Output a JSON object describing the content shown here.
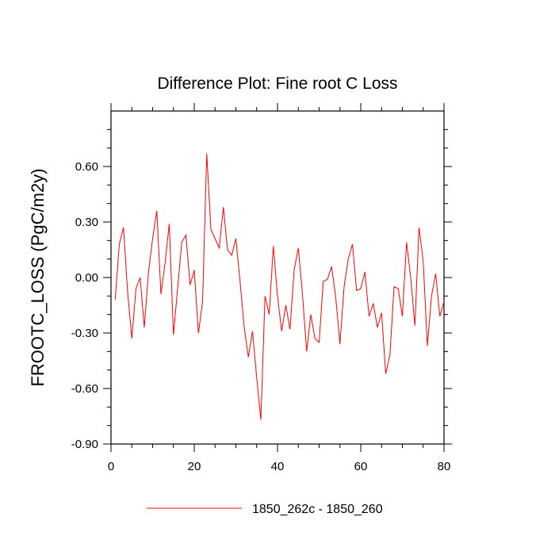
{
  "chart_data": {
    "type": "line",
    "title": "Difference Plot: Fine root C Loss",
    "xlabel": "",
    "ylabel": "FROOTC_LOSS  (PgC/m2y)",
    "xlim": [
      0,
      80
    ],
    "ylim": [
      -0.9,
      0.9
    ],
    "xticks": [
      0,
      20,
      40,
      60,
      80
    ],
    "xtick_labels": [
      "0",
      "20",
      "40",
      "60",
      "80"
    ],
    "yticks": [
      -0.9,
      -0.6,
      -0.3,
      0.0,
      0.3,
      0.6
    ],
    "ytick_labels": [
      "-0.90",
      "-0.60",
      "-0.30",
      "0.00",
      "0.30",
      "0.60"
    ],
    "grid": false,
    "legend_position": "bottom",
    "series": [
      {
        "name": "1850_262c - 1850_260",
        "color": "#ff0000",
        "x": [
          1,
          2,
          3,
          4,
          5,
          6,
          7,
          8,
          9,
          10,
          11,
          12,
          13,
          14,
          15,
          16,
          17,
          18,
          19,
          20,
          21,
          22,
          23,
          24,
          25,
          26,
          27,
          28,
          29,
          30,
          31,
          32,
          33,
          34,
          35,
          36,
          37,
          38,
          39,
          40,
          41,
          42,
          43,
          44,
          45,
          46,
          47,
          48,
          49,
          50,
          51,
          52,
          53,
          54,
          55,
          56,
          57,
          58,
          59,
          60,
          61,
          62,
          63,
          64,
          65,
          66,
          67,
          68,
          69,
          70,
          71,
          72,
          73,
          74,
          75,
          76,
          77,
          78,
          79,
          80
        ],
        "y": [
          -0.12,
          0.18,
          0.27,
          -0.08,
          -0.33,
          -0.06,
          0.0,
          -0.27,
          0.03,
          0.21,
          0.36,
          -0.09,
          0.08,
          0.29,
          -0.31,
          -0.06,
          0.19,
          0.23,
          -0.04,
          0.04,
          -0.3,
          -0.13,
          0.67,
          0.26,
          0.21,
          0.16,
          0.38,
          0.15,
          0.12,
          0.21,
          -0.02,
          -0.27,
          -0.43,
          -0.29,
          -0.54,
          -0.77,
          -0.1,
          -0.2,
          0.17,
          -0.1,
          -0.29,
          -0.15,
          -0.28,
          0.04,
          0.16,
          -0.09,
          -0.4,
          -0.2,
          -0.33,
          -0.35,
          -0.02,
          -0.01,
          0.06,
          -0.11,
          -0.36,
          -0.05,
          0.1,
          0.18,
          -0.07,
          -0.06,
          0.03,
          -0.21,
          -0.14,
          -0.27,
          -0.19,
          -0.52,
          -0.42,
          -0.05,
          -0.06,
          -0.21,
          0.19,
          0.0,
          -0.26,
          0.27,
          0.09,
          -0.37,
          -0.1,
          0.02,
          -0.21,
          -0.13
        ]
      }
    ]
  }
}
